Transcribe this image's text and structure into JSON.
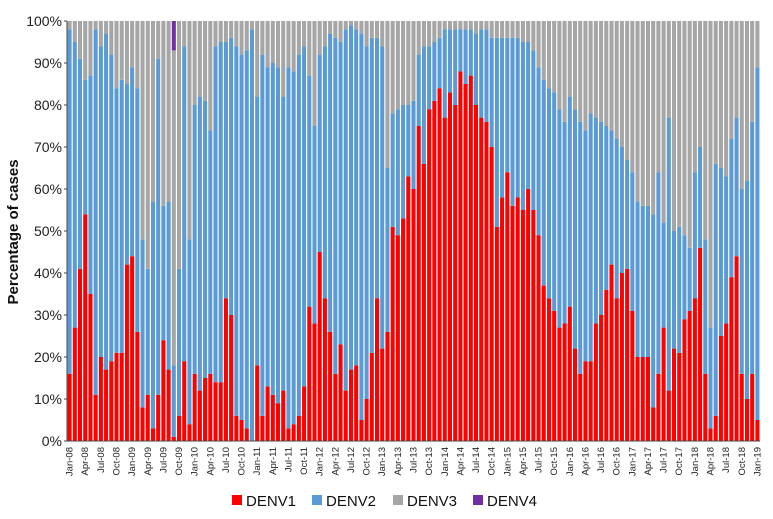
{
  "chart_data": {
    "type": "bar",
    "stacked": true,
    "percent_stacked": true,
    "ylabel": "Percentage of cases",
    "xlabel": "",
    "ylim": [
      0,
      100
    ],
    "y_tick_labels": [
      "0%",
      "10%",
      "20%",
      "30%",
      "40%",
      "50%",
      "60%",
      "70%",
      "80%",
      "90%",
      "100%"
    ],
    "x_tick_labels": [
      "Jan-08",
      "Apr-08",
      "Jul-08",
      "Oct-08",
      "Jan-09",
      "Apr-09",
      "Jul-09",
      "Oct-09",
      "Jan-10",
      "Apr-10",
      "Jul-10",
      "Oct-10",
      "Jan-11",
      "Apr-11",
      "Jul-11",
      "Oct-11",
      "Jan-12",
      "Apr-12",
      "Jul-12",
      "Oct-12",
      "Jan-13",
      "Apr-13",
      "Jul-13",
      "Oct-13",
      "Jan-14",
      "Apr-14",
      "Jul-14",
      "Oct-14",
      "Jan-15",
      "Apr-15",
      "Jul-15",
      "Oct-15",
      "Jan-16",
      "Apr-16",
      "Jul-16",
      "Oct-16",
      "Jan-17",
      "Apr-17",
      "Jul-17",
      "Oct-17",
      "Jan-18",
      "Apr-18",
      "Jul-18",
      "Oct-18",
      "Jan-19"
    ],
    "grid": false,
    "legend_position": "bottom",
    "series": [
      {
        "name": "DENV1",
        "color": "#ff0000",
        "values": [
          16,
          27,
          41,
          54,
          35,
          11,
          20,
          17,
          19,
          21,
          21,
          42,
          44,
          26,
          8,
          11,
          3,
          11,
          24,
          17,
          1,
          6,
          19,
          4,
          16,
          12,
          15,
          16,
          14,
          14,
          34,
          30,
          6,
          5,
          3,
          0,
          18,
          6,
          13,
          11,
          9,
          12,
          3,
          4,
          6,
          13,
          32,
          28,
          45,
          34,
          26,
          16,
          23,
          12,
          17,
          18,
          5,
          10,
          21,
          34,
          22,
          26,
          51,
          49,
          53,
          63,
          60,
          75,
          66,
          79,
          81,
          84,
          77,
          83,
          80,
          88,
          85,
          87,
          80,
          77,
          76,
          70,
          51,
          58,
          64,
          56,
          58,
          55,
          60,
          55,
          49,
          37,
          34,
          31,
          27,
          28,
          32,
          22,
          16,
          19,
          19,
          28,
          30,
          36,
          42,
          34,
          40,
          41,
          31,
          20,
          20,
          20,
          8,
          16,
          27,
          12,
          22,
          21,
          29,
          31,
          34,
          46,
          16,
          3,
          6,
          25,
          28,
          39,
          44,
          16,
          10,
          16,
          5
        ],
        "_note_values": "DENV1 %"
      },
      {
        "name": "DENV2",
        "color": "#5b9bd5",
        "values": [
          82,
          68,
          50,
          32,
          52,
          87,
          74,
          80,
          73,
          63,
          65,
          43,
          45,
          58,
          40,
          30,
          54,
          80,
          32,
          40,
          17,
          35,
          75,
          44,
          64,
          70,
          66,
          58,
          80,
          81,
          61,
          66,
          88,
          87,
          90,
          98,
          64,
          86,
          76,
          79,
          80,
          70,
          86,
          84,
          86,
          81,
          55,
          47,
          47,
          60,
          71,
          80,
          72,
          86,
          82,
          80,
          92,
          84,
          75,
          62,
          72,
          39,
          27,
          30,
          27,
          17,
          21,
          17,
          28,
          15,
          14,
          12,
          21,
          15,
          18,
          10,
          13,
          11,
          17,
          21,
          22,
          26,
          45,
          38,
          32,
          40,
          38,
          40,
          35,
          38,
          40,
          49,
          50,
          52,
          52,
          48,
          50,
          57,
          60,
          55,
          59,
          49,
          46,
          39,
          32,
          38,
          30,
          26,
          33,
          37,
          36,
          36,
          46,
          48,
          25,
          65,
          28,
          30,
          20,
          15,
          30,
          24,
          32,
          24,
          60,
          40,
          35,
          33,
          33,
          44,
          52,
          60,
          84
        ]
      },
      {
        "name": "DENV3",
        "color": "#a6a6a6",
        "values": [
          2,
          5,
          9,
          14,
          13,
          2,
          6,
          3,
          8,
          16,
          14,
          15,
          11,
          16,
          52,
          59,
          43,
          9,
          44,
          43,
          75,
          59,
          6,
          52,
          20,
          18,
          19,
          26,
          6,
          5,
          5,
          4,
          6,
          8,
          7,
          2,
          18,
          8,
          11,
          10,
          11,
          18,
          11,
          12,
          8,
          6,
          13,
          25,
          8,
          6,
          3,
          4,
          5,
          2,
          1,
          2,
          3,
          6,
          4,
          4,
          6,
          35,
          22,
          21,
          20,
          20,
          19,
          8,
          6,
          6,
          5,
          4,
          2,
          2,
          2,
          2,
          2,
          2,
          3,
          2,
          2,
          4,
          4,
          4,
          4,
          4,
          4,
          5,
          5,
          7,
          11,
          14,
          16,
          17,
          21,
          24,
          18,
          21,
          24,
          26,
          22,
          23,
          24,
          25,
          26,
          28,
          30,
          33,
          36,
          43,
          44,
          44,
          46,
          36,
          48,
          23,
          50,
          49,
          51,
          54,
          36,
          30,
          52,
          73,
          34,
          35,
          37,
          28,
          23,
          40,
          38,
          24,
          11
        ]
      },
      {
        "name": "DENV4",
        "color": "#7030a0",
        "values": [
          0,
          0,
          0,
          0,
          0,
          0,
          0,
          0,
          0,
          0,
          0,
          0,
          0,
          0,
          0,
          0,
          0,
          0,
          0,
          0,
          0,
          0,
          0,
          0,
          0,
          0,
          0,
          0,
          0,
          0,
          0,
          0,
          0,
          0,
          0,
          0,
          0,
          0,
          0,
          0,
          0,
          0,
          0,
          0,
          0,
          0,
          0,
          0,
          0,
          0,
          0,
          0,
          0,
          0,
          0,
          0,
          0,
          0,
          0,
          0,
          0,
          0,
          0,
          0,
          0,
          0,
          0,
          0,
          0,
          0,
          0,
          0,
          0,
          0,
          0,
          0,
          0,
          0,
          0,
          0,
          0,
          0,
          0,
          0,
          0,
          0,
          0,
          0,
          0,
          0,
          0,
          0,
          0,
          0,
          0,
          0,
          0,
          0,
          0,
          0,
          0,
          0,
          0,
          0,
          0,
          0,
          0,
          0,
          0,
          0,
          0,
          0,
          0,
          0,
          0,
          0,
          0,
          0,
          0,
          0,
          0,
          0,
          0,
          0,
          0,
          0,
          0,
          0,
          0,
          0,
          0,
          0,
          0
        ]
      }
    ]
  }
}
